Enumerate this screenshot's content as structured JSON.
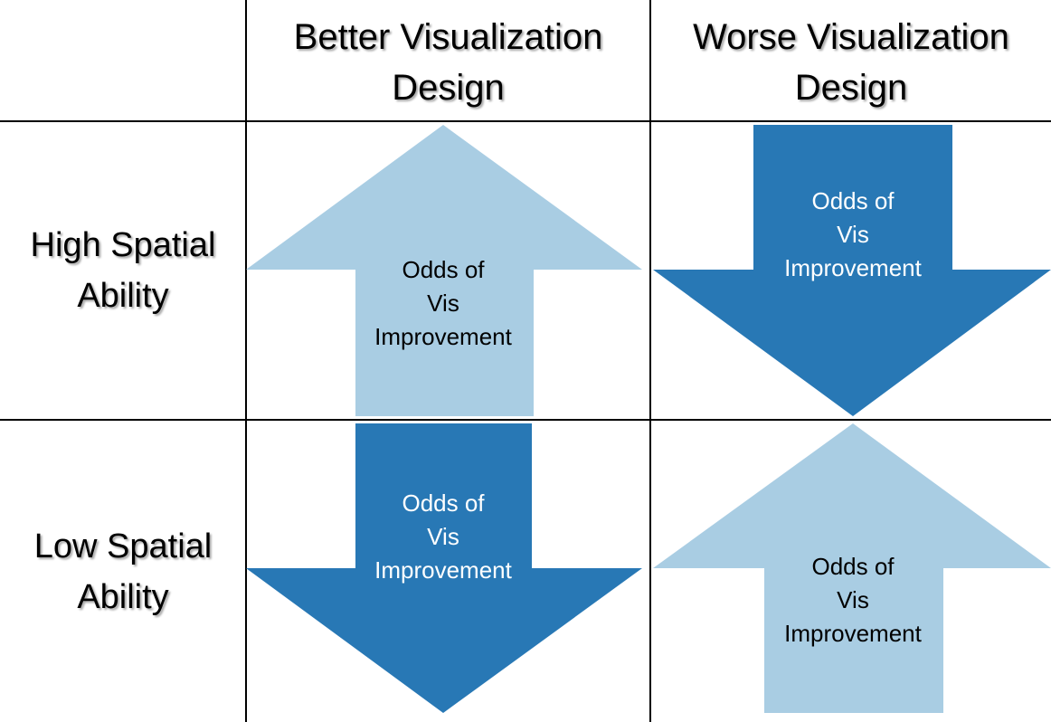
{
  "columns": [
    {
      "line1": "Better Visualization",
      "line2": "Design"
    },
    {
      "line1": "Worse Visualization",
      "line2": "Design"
    }
  ],
  "rows": [
    {
      "line1": "High Spatial",
      "line2": "Ability"
    },
    {
      "line1": "Low Spatial",
      "line2": "Ability"
    }
  ],
  "cells": [
    {
      "row": "High Spatial Ability",
      "column": "Better Visualization Design",
      "direction": "up",
      "color": "#a9cde3",
      "text_color": "#000000",
      "label": [
        "Odds of",
        "Vis",
        "Improvement"
      ]
    },
    {
      "row": "High Spatial Ability",
      "column": "Worse Visualization Design",
      "direction": "down",
      "color": "#2878b5",
      "text_color": "#ffffff",
      "label": [
        "Odds of",
        "Vis",
        "Improvement"
      ]
    },
    {
      "row": "Low Spatial Ability",
      "column": "Better Visualization Design",
      "direction": "down",
      "color": "#2878b5",
      "text_color": "#ffffff",
      "label": [
        "Odds of",
        "Vis",
        "Improvement"
      ]
    },
    {
      "row": "Low Spatial Ability",
      "column": "Worse Visualization Design",
      "direction": "up",
      "color": "#a9cde3",
      "text_color": "#000000",
      "label": [
        "Odds of",
        "Vis",
        "Improvement"
      ]
    }
  ],
  "colors": {
    "light_arrow": "#a9cde3",
    "dark_arrow": "#2878b5",
    "grid": "#000000"
  }
}
